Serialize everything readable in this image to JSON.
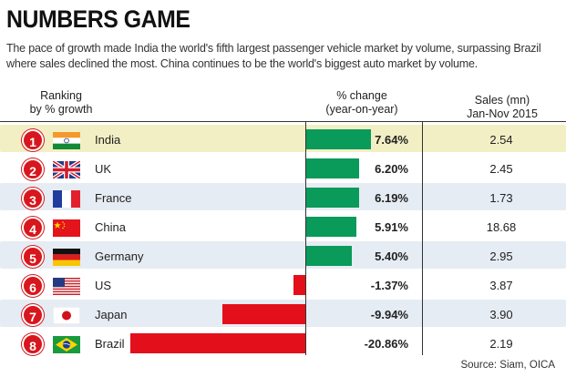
{
  "title": "NUMBERS GAME",
  "subtitle": "The pace of growth made India the world's fifth largest passenger vehicle market by volume, surpassing Brazil where sales declined the most. China continues to be the world's biggest auto market by volume.",
  "headers": {
    "rank_line1": "Ranking",
    "rank_line2": "by % growth",
    "change_line1": "% change",
    "change_line2": "(year-on-year)",
    "sales_line1": "Sales (mn)",
    "sales_line2": "Jan-Nov 2015"
  },
  "source": "Source: Siam, OICA",
  "colors": {
    "positive": "#0a9a5a",
    "negative": "#e3101b",
    "highlight": "#f3efc4",
    "band": "#e6ecf3",
    "rank": "#d7171d"
  },
  "chart_data": {
    "type": "bar",
    "orientation": "horizontal",
    "categories": [
      "India",
      "UK",
      "France",
      "China",
      "Germany",
      "US",
      "Japan",
      "Brazil"
    ],
    "series": [
      {
        "values": [
          7.64,
          6.2,
          6.19,
          5.91,
          5.4,
          -1.37,
          -9.94,
          -20.86
        ]
      }
    ],
    "value_labels": [
      "7.64%",
      "6.20%",
      "6.19%",
      "5.91%",
      "5.40%",
      "-1.37%",
      "-9.94%",
      "-20.86%"
    ],
    "sales_mn": [
      "2.54",
      "2.45",
      "1.73",
      "18.68",
      "2.95",
      "3.87",
      "3.90",
      "2.19"
    ],
    "ranks": [
      "1",
      "2",
      "3",
      "4",
      "5",
      "6",
      "7",
      "8"
    ],
    "flags": [
      "india-flag",
      "uk-flag",
      "france-flag",
      "china-flag",
      "germany-flag",
      "us-flag",
      "japan-flag",
      "brazil-flag"
    ]
  }
}
